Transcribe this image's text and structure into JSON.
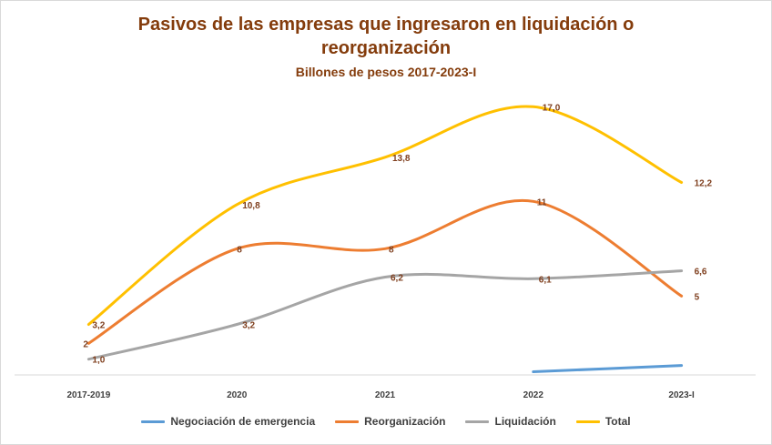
{
  "title_lines": [
    "Pasivos de las empresas que ingresaron en liquidación o",
    "reorganización"
  ],
  "subtitle": "Billones de pesos 2017-2023-I",
  "chart_data": {
    "type": "line",
    "smooth": true,
    "categories": [
      "2017-2019",
      "2020",
      "2021",
      "2022",
      "2023-I"
    ],
    "ylim": [
      0,
      18
    ],
    "grid": false,
    "legend_position": "bottom",
    "series": [
      {
        "name": "Negociación de emergencia",
        "color": "#5b9bd5",
        "values": [
          null,
          null,
          null,
          0.2,
          0.6
        ],
        "labels": [
          null,
          null,
          null,
          null,
          null
        ]
      },
      {
        "name": "Reorganización",
        "color": "#ed7d31",
        "values": [
          2,
          8,
          8,
          11,
          5
        ],
        "labels": [
          "2",
          "8",
          "8",
          "11",
          "5"
        ]
      },
      {
        "name": "Liquidación",
        "color": "#a5a5a5",
        "values": [
          1.0,
          3.2,
          6.2,
          6.1,
          6.6
        ],
        "labels": [
          "1,0",
          "3,2",
          "6,2",
          "6,1",
          "6,6"
        ]
      },
      {
        "name": "Total",
        "color": "#ffc000",
        "values": [
          3.2,
          10.8,
          13.8,
          17.0,
          12.2
        ],
        "labels": [
          "3,2",
          "10,8",
          "13,8",
          "17,0",
          "12,2"
        ]
      }
    ]
  }
}
